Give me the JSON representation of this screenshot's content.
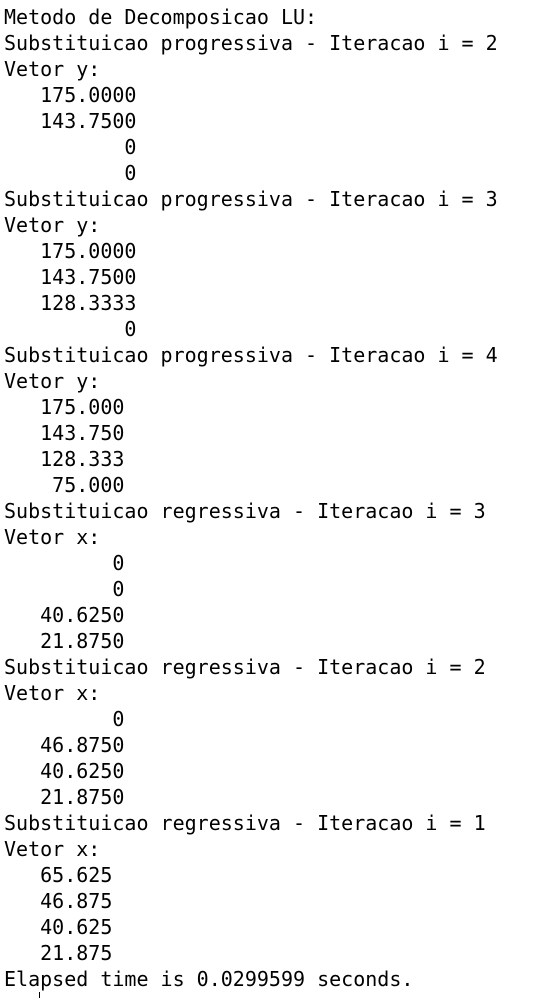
{
  "console": {
    "lines": [
      "Metodo de Decomposicao LU:",
      "Substituicao progressiva - Iteracao i = 2",
      "Vetor y:",
      "   175.0000",
      "   143.7500",
      "          0",
      "          0",
      "Substituicao progressiva - Iteracao i = 3",
      "Vetor y:",
      "   175.0000",
      "   143.7500",
      "   128.3333",
      "          0",
      "Substituicao progressiva - Iteracao i = 4",
      "Vetor y:",
      "   175.000",
      "   143.750",
      "   128.333",
      "    75.000",
      "Substituicao regressiva - Iteracao i = 3",
      "Vetor x:",
      "         0",
      "         0",
      "   40.6250",
      "   21.8750",
      "Substituicao regressiva - Iteracao i = 2",
      "Vetor x:",
      "         0",
      "   46.8750",
      "   40.6250",
      "   21.8750",
      "Substituicao regressiva - Iteracao i = 1",
      "Vetor x:",
      "   65.625",
      "   46.875",
      "   40.625",
      "   21.875",
      "Elapsed time is 0.0299599 seconds."
    ]
  }
}
